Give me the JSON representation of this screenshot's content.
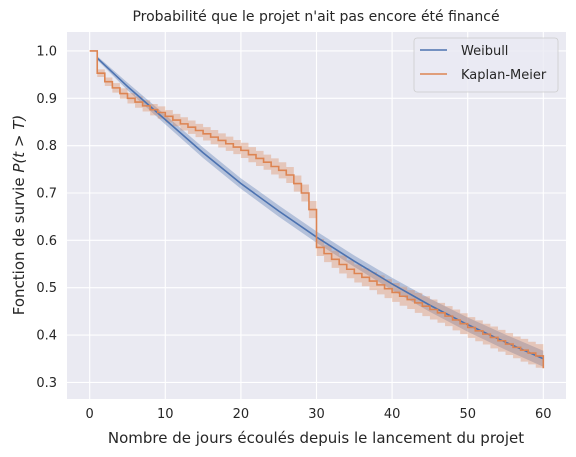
{
  "chart_data": {
    "type": "line",
    "title": "Probabilité que le projet n'ait pas encore été financé",
    "xlabel": "Nombre de jours écoulés depuis le lancement du projet",
    "ylabel_prefix": "Fonction de survie ",
    "ylabel_math": "P(t > T)",
    "xlim": [
      -3,
      63
    ],
    "ylim": [
      0.265,
      1.04
    ],
    "x_ticks": [
      0,
      10,
      20,
      30,
      40,
      50,
      60
    ],
    "y_ticks": [
      0.3,
      0.4,
      0.5,
      0.6,
      0.7,
      0.8,
      0.9,
      1.0
    ],
    "x_tick_labels": [
      "0",
      "10",
      "20",
      "30",
      "40",
      "50",
      "60"
    ],
    "y_tick_labels": [
      "0.3",
      "0.4",
      "0.5",
      "0.6",
      "0.7",
      "0.8",
      "0.9",
      "1.0"
    ],
    "grid": true,
    "legend_position": "top-right",
    "colors": {
      "weibull": "#4c72b0",
      "kaplan_meier": "#dd8452",
      "background": "#eaeaf2",
      "grid": "#ffffff"
    },
    "series": [
      {
        "name": "Weibull",
        "kind": "line",
        "x": [
          1,
          5,
          10,
          15,
          20,
          25,
          30,
          35,
          40,
          45,
          50,
          55,
          60
        ],
        "y": [
          0.985,
          0.925,
          0.855,
          0.785,
          0.72,
          0.662,
          0.607,
          0.556,
          0.508,
          0.463,
          0.422,
          0.385,
          0.35
        ],
        "ci_halfwidth": [
          0.004,
          0.008,
          0.01,
          0.011,
          0.011,
          0.012,
          0.012,
          0.012,
          0.013,
          0.014,
          0.015,
          0.016,
          0.017
        ]
      },
      {
        "name": "Kaplan-Meier",
        "kind": "step",
        "x": [
          0,
          1,
          2,
          3,
          4,
          5,
          6,
          7,
          8,
          9,
          10,
          11,
          12,
          13,
          14,
          15,
          16,
          17,
          18,
          19,
          20,
          21,
          22,
          23,
          24,
          25,
          26,
          27,
          28,
          29,
          30,
          31,
          32,
          33,
          34,
          35,
          36,
          37,
          38,
          39,
          40,
          41,
          42,
          43,
          44,
          45,
          46,
          47,
          48,
          49,
          50,
          51,
          52,
          53,
          54,
          55,
          56,
          57,
          58,
          59,
          60
        ],
        "y": [
          1.0,
          0.953,
          0.935,
          0.922,
          0.91,
          0.9,
          0.892,
          0.884,
          0.876,
          0.87,
          0.862,
          0.854,
          0.846,
          0.839,
          0.832,
          0.825,
          0.818,
          0.811,
          0.804,
          0.797,
          0.79,
          0.781,
          0.773,
          0.765,
          0.756,
          0.748,
          0.738,
          0.72,
          0.7,
          0.665,
          0.585,
          0.572,
          0.56,
          0.549,
          0.539,
          0.53,
          0.522,
          0.514,
          0.506,
          0.498,
          0.49,
          0.482,
          0.475,
          0.468,
          0.461,
          0.454,
          0.447,
          0.44,
          0.432,
          0.424,
          0.416,
          0.409,
          0.402,
          0.395,
          0.388,
          0.381,
          0.374,
          0.368,
          0.362,
          0.356,
          0.33
        ],
        "ci_halfwidth": [
          0.0,
          0.008,
          0.009,
          0.01,
          0.011,
          0.011,
          0.012,
          0.012,
          0.012,
          0.013,
          0.013,
          0.013,
          0.014,
          0.014,
          0.014,
          0.014,
          0.015,
          0.015,
          0.015,
          0.015,
          0.016,
          0.016,
          0.016,
          0.016,
          0.017,
          0.017,
          0.017,
          0.017,
          0.018,
          0.018,
          0.018,
          0.018,
          0.018,
          0.019,
          0.019,
          0.019,
          0.019,
          0.019,
          0.02,
          0.02,
          0.02,
          0.02,
          0.02,
          0.021,
          0.021,
          0.021,
          0.021,
          0.021,
          0.022,
          0.022,
          0.022,
          0.022,
          0.022,
          0.023,
          0.023,
          0.023,
          0.023,
          0.024,
          0.024,
          0.025,
          0.025
        ]
      }
    ]
  }
}
